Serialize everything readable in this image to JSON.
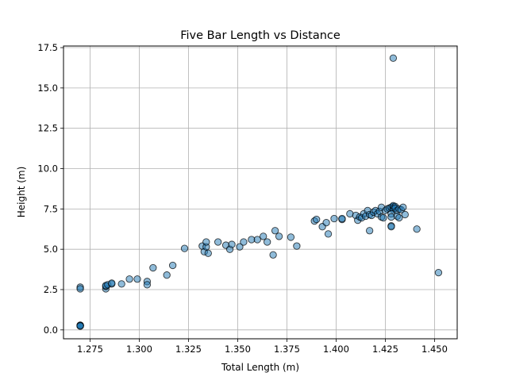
{
  "chart_data": {
    "type": "scatter",
    "title": "Five Bar Length vs Distance",
    "xlabel": "Total Length (m)",
    "ylabel": "Height (m)",
    "xlim": [
      1.2615,
      1.4615
    ],
    "ylim": [
      -0.55,
      17.6
    ],
    "xticks": [
      1.275,
      1.3,
      1.325,
      1.35,
      1.375,
      1.4,
      1.425,
      1.45
    ],
    "xtick_labels": [
      "1.275",
      "1.300",
      "1.325",
      "1.350",
      "1.375",
      "1.400",
      "1.425",
      "1.450"
    ],
    "yticks": [
      0.0,
      2.5,
      5.0,
      7.5,
      10.0,
      12.5,
      15.0,
      17.5
    ],
    "ytick_labels": [
      "0.0",
      "2.5",
      "5.0",
      "7.5",
      "10.0",
      "12.5",
      "15.0",
      "17.5"
    ],
    "grid": true,
    "marker_color": "#1f77b4",
    "marker_edge_color": "#000000",
    "marker_alpha": 0.5,
    "points": [
      {
        "x": 1.27,
        "y": 0.25
      },
      {
        "x": 1.27,
        "y": 0.27
      },
      {
        "x": 1.27,
        "y": 0.29
      },
      {
        "x": 1.27,
        "y": 0.26
      },
      {
        "x": 1.27,
        "y": 0.28
      },
      {
        "x": 1.27,
        "y": 0.24
      },
      {
        "x": 1.27,
        "y": 2.65
      },
      {
        "x": 1.27,
        "y": 2.55
      },
      {
        "x": 1.283,
        "y": 2.55
      },
      {
        "x": 1.283,
        "y": 2.7
      },
      {
        "x": 1.283,
        "y": 2.75
      },
      {
        "x": 1.284,
        "y": 2.8
      },
      {
        "x": 1.286,
        "y": 2.85
      },
      {
        "x": 1.286,
        "y": 2.9
      },
      {
        "x": 1.291,
        "y": 2.85
      },
      {
        "x": 1.295,
        "y": 3.15
      },
      {
        "x": 1.299,
        "y": 3.15
      },
      {
        "x": 1.304,
        "y": 3.0
      },
      {
        "x": 1.304,
        "y": 2.8
      },
      {
        "x": 1.307,
        "y": 3.85
      },
      {
        "x": 1.314,
        "y": 3.4
      },
      {
        "x": 1.317,
        "y": 4.0
      },
      {
        "x": 1.323,
        "y": 5.05
      },
      {
        "x": 1.332,
        "y": 5.2
      },
      {
        "x": 1.333,
        "y": 4.85
      },
      {
        "x": 1.334,
        "y": 5.15
      },
      {
        "x": 1.334,
        "y": 5.45
      },
      {
        "x": 1.335,
        "y": 4.75
      },
      {
        "x": 1.34,
        "y": 5.45
      },
      {
        "x": 1.344,
        "y": 5.25
      },
      {
        "x": 1.346,
        "y": 5.0
      },
      {
        "x": 1.347,
        "y": 5.3
      },
      {
        "x": 1.351,
        "y": 5.15
      },
      {
        "x": 1.353,
        "y": 5.45
      },
      {
        "x": 1.357,
        "y": 5.6
      },
      {
        "x": 1.36,
        "y": 5.6
      },
      {
        "x": 1.363,
        "y": 5.8
      },
      {
        "x": 1.365,
        "y": 5.45
      },
      {
        "x": 1.368,
        "y": 4.65
      },
      {
        "x": 1.369,
        "y": 6.15
      },
      {
        "x": 1.371,
        "y": 5.8
      },
      {
        "x": 1.377,
        "y": 5.75
      },
      {
        "x": 1.38,
        "y": 5.2
      },
      {
        "x": 1.389,
        "y": 6.75
      },
      {
        "x": 1.39,
        "y": 6.85
      },
      {
        "x": 1.393,
        "y": 6.4
      },
      {
        "x": 1.395,
        "y": 6.65
      },
      {
        "x": 1.396,
        "y": 5.95
      },
      {
        "x": 1.399,
        "y": 6.9
      },
      {
        "x": 1.403,
        "y": 6.85
      },
      {
        "x": 1.403,
        "y": 6.9
      },
      {
        "x": 1.407,
        "y": 7.2
      },
      {
        "x": 1.41,
        "y": 7.1
      },
      {
        "x": 1.411,
        "y": 6.8
      },
      {
        "x": 1.412,
        "y": 7.0
      },
      {
        "x": 1.413,
        "y": 6.95
      },
      {
        "x": 1.414,
        "y": 7.2
      },
      {
        "x": 1.415,
        "y": 7.05
      },
      {
        "x": 1.416,
        "y": 7.4
      },
      {
        "x": 1.417,
        "y": 7.15
      },
      {
        "x": 1.417,
        "y": 6.15
      },
      {
        "x": 1.418,
        "y": 7.1
      },
      {
        "x": 1.419,
        "y": 7.3
      },
      {
        "x": 1.42,
        "y": 7.4
      },
      {
        "x": 1.421,
        "y": 7.2
      },
      {
        "x": 1.422,
        "y": 7.35
      },
      {
        "x": 1.423,
        "y": 7.0
      },
      {
        "x": 1.423,
        "y": 7.6
      },
      {
        "x": 1.424,
        "y": 6.95
      },
      {
        "x": 1.425,
        "y": 7.4
      },
      {
        "x": 1.426,
        "y": 7.5
      },
      {
        "x": 1.427,
        "y": 7.55
      },
      {
        "x": 1.428,
        "y": 7.6
      },
      {
        "x": 1.429,
        "y": 7.65
      },
      {
        "x": 1.429,
        "y": 7.55
      },
      {
        "x": 1.429,
        "y": 7.45
      },
      {
        "x": 1.429,
        "y": 7.7
      },
      {
        "x": 1.428,
        "y": 7.2
      },
      {
        "x": 1.428,
        "y": 7.0
      },
      {
        "x": 1.428,
        "y": 6.45
      },
      {
        "x": 1.428,
        "y": 6.4
      },
      {
        "x": 1.43,
        "y": 7.65
      },
      {
        "x": 1.43,
        "y": 7.55
      },
      {
        "x": 1.431,
        "y": 7.4
      },
      {
        "x": 1.431,
        "y": 7.05
      },
      {
        "x": 1.432,
        "y": 6.95
      },
      {
        "x": 1.432,
        "y": 7.5
      },
      {
        "x": 1.433,
        "y": 7.45
      },
      {
        "x": 1.434,
        "y": 7.6
      },
      {
        "x": 1.435,
        "y": 7.15
      },
      {
        "x": 1.429,
        "y": 16.85
      },
      {
        "x": 1.441,
        "y": 6.25
      },
      {
        "x": 1.452,
        "y": 3.55
      }
    ]
  }
}
